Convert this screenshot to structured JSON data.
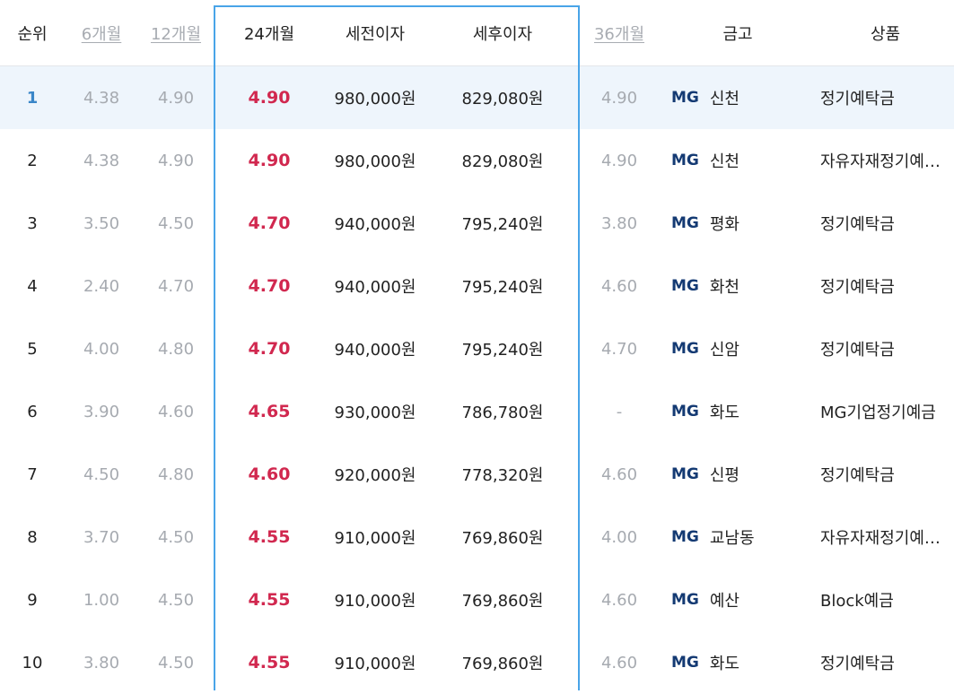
{
  "header": {
    "rank": "순위",
    "m6": "6개월",
    "m12": "12개월",
    "m24": "24개월",
    "pre_tax": "세전이자",
    "post_tax": "세후이자",
    "m36": "36개월",
    "bank": "금고",
    "product": "상품"
  },
  "colors": {
    "highlight_border": "#49a4e8",
    "rate": "#d1284f",
    "muted": "#a6aab0",
    "mg_logo": "#143a73",
    "selected_row_bg": "#eef5fc"
  },
  "rows": [
    {
      "rank": "1",
      "m6": "4.38",
      "m12": "4.90",
      "m24": "4.90",
      "pre": "980,000원",
      "post": "829,080원",
      "m36": "4.90",
      "logo": "MG",
      "bank": "신천",
      "product": "정기예탁금"
    },
    {
      "rank": "2",
      "m6": "4.38",
      "m12": "4.90",
      "m24": "4.90",
      "pre": "980,000원",
      "post": "829,080원",
      "m36": "4.90",
      "logo": "MG",
      "bank": "신천",
      "product": "자유자재정기예탁금"
    },
    {
      "rank": "3",
      "m6": "3.50",
      "m12": "4.50",
      "m24": "4.70",
      "pre": "940,000원",
      "post": "795,240원",
      "m36": "3.80",
      "logo": "MG",
      "bank": "평화",
      "product": "정기예탁금"
    },
    {
      "rank": "4",
      "m6": "2.40",
      "m12": "4.70",
      "m24": "4.70",
      "pre": "940,000원",
      "post": "795,240원",
      "m36": "4.60",
      "logo": "MG",
      "bank": "화천",
      "product": "정기예탁금"
    },
    {
      "rank": "5",
      "m6": "4.00",
      "m12": "4.80",
      "m24": "4.70",
      "pre": "940,000원",
      "post": "795,240원",
      "m36": "4.70",
      "logo": "MG",
      "bank": "신암",
      "product": "정기예탁금"
    },
    {
      "rank": "6",
      "m6": "3.90",
      "m12": "4.60",
      "m24": "4.65",
      "pre": "930,000원",
      "post": "786,780원",
      "m36": "-",
      "logo": "MG",
      "bank": "화도",
      "product": "MG기업정기예금"
    },
    {
      "rank": "7",
      "m6": "4.50",
      "m12": "4.80",
      "m24": "4.60",
      "pre": "920,000원",
      "post": "778,320원",
      "m36": "4.60",
      "logo": "MG",
      "bank": "신평",
      "product": "정기예탁금"
    },
    {
      "rank": "8",
      "m6": "3.70",
      "m12": "4.50",
      "m24": "4.55",
      "pre": "910,000원",
      "post": "769,860원",
      "m36": "4.00",
      "logo": "MG",
      "bank": "교남동",
      "product": "자유자재정기예탁금"
    },
    {
      "rank": "9",
      "m6": "1.00",
      "m12": "4.50",
      "m24": "4.55",
      "pre": "910,000원",
      "post": "769,860원",
      "m36": "4.60",
      "logo": "MG",
      "bank": "예산",
      "product": "Block예금"
    },
    {
      "rank": "10",
      "m6": "3.80",
      "m12": "4.50",
      "m24": "4.55",
      "pre": "910,000원",
      "post": "769,860원",
      "m36": "4.60",
      "logo": "MG",
      "bank": "화도",
      "product": "정기예탁금"
    }
  ]
}
